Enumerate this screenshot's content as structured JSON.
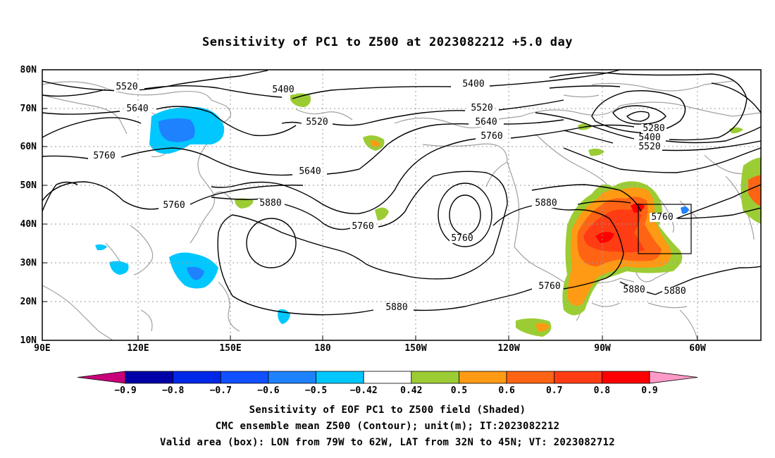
{
  "title": "Sensitivity of PC1 to Z500 at 2023082212 +5.0 day",
  "lat_labels": [
    "80N",
    "70N",
    "60N",
    "50N",
    "40N",
    "30N",
    "20N",
    "10N"
  ],
  "lon_labels": [
    "90E",
    "120E",
    "150E",
    "180",
    "150W",
    "120W",
    "90W",
    "60W"
  ],
  "contour_labels": [
    "5520",
    "5640",
    "5760",
    "5760",
    "5400",
    "5520",
    "5640",
    "5760",
    "5880",
    "5760",
    "5760",
    "5400",
    "5520",
    "5640",
    "5760",
    "5280",
    "5400",
    "5520",
    "5880",
    "5760",
    "5880",
    "5880",
    "5880"
  ],
  "colorbar": {
    "labels": [
      "−0.9",
      "−0.8",
      "−0.7",
      "−0.6",
      "−0.5",
      "−0.42",
      "0.42",
      "0.5",
      "0.6",
      "0.7",
      "0.8",
      "0.9"
    ],
    "colors": [
      "#c8007a",
      "#0000a8",
      "#0028e8",
      "#1050ff",
      "#1e82ff",
      "#00c8ff",
      "#ffffff",
      "#9ccc34",
      "#ff9a14",
      "#ff6414",
      "#ff3c14",
      "#ff0000",
      "#ff9ac8"
    ]
  },
  "captions": {
    "line1": "Sensitivity of EOF PC1 to Z500 field (Shaded)",
    "line2": "CMC ensemble mean Z500 (Contour); unit(m); IT:2023082212",
    "line3": "Valid area (box): LON from 79W to 62W, LAT from 32N to 45N; VT: 2023082712"
  },
  "valid_box": {
    "lon_min": "79W",
    "lon_max": "62W",
    "lat_min": "32N",
    "lat_max": "45N"
  }
}
